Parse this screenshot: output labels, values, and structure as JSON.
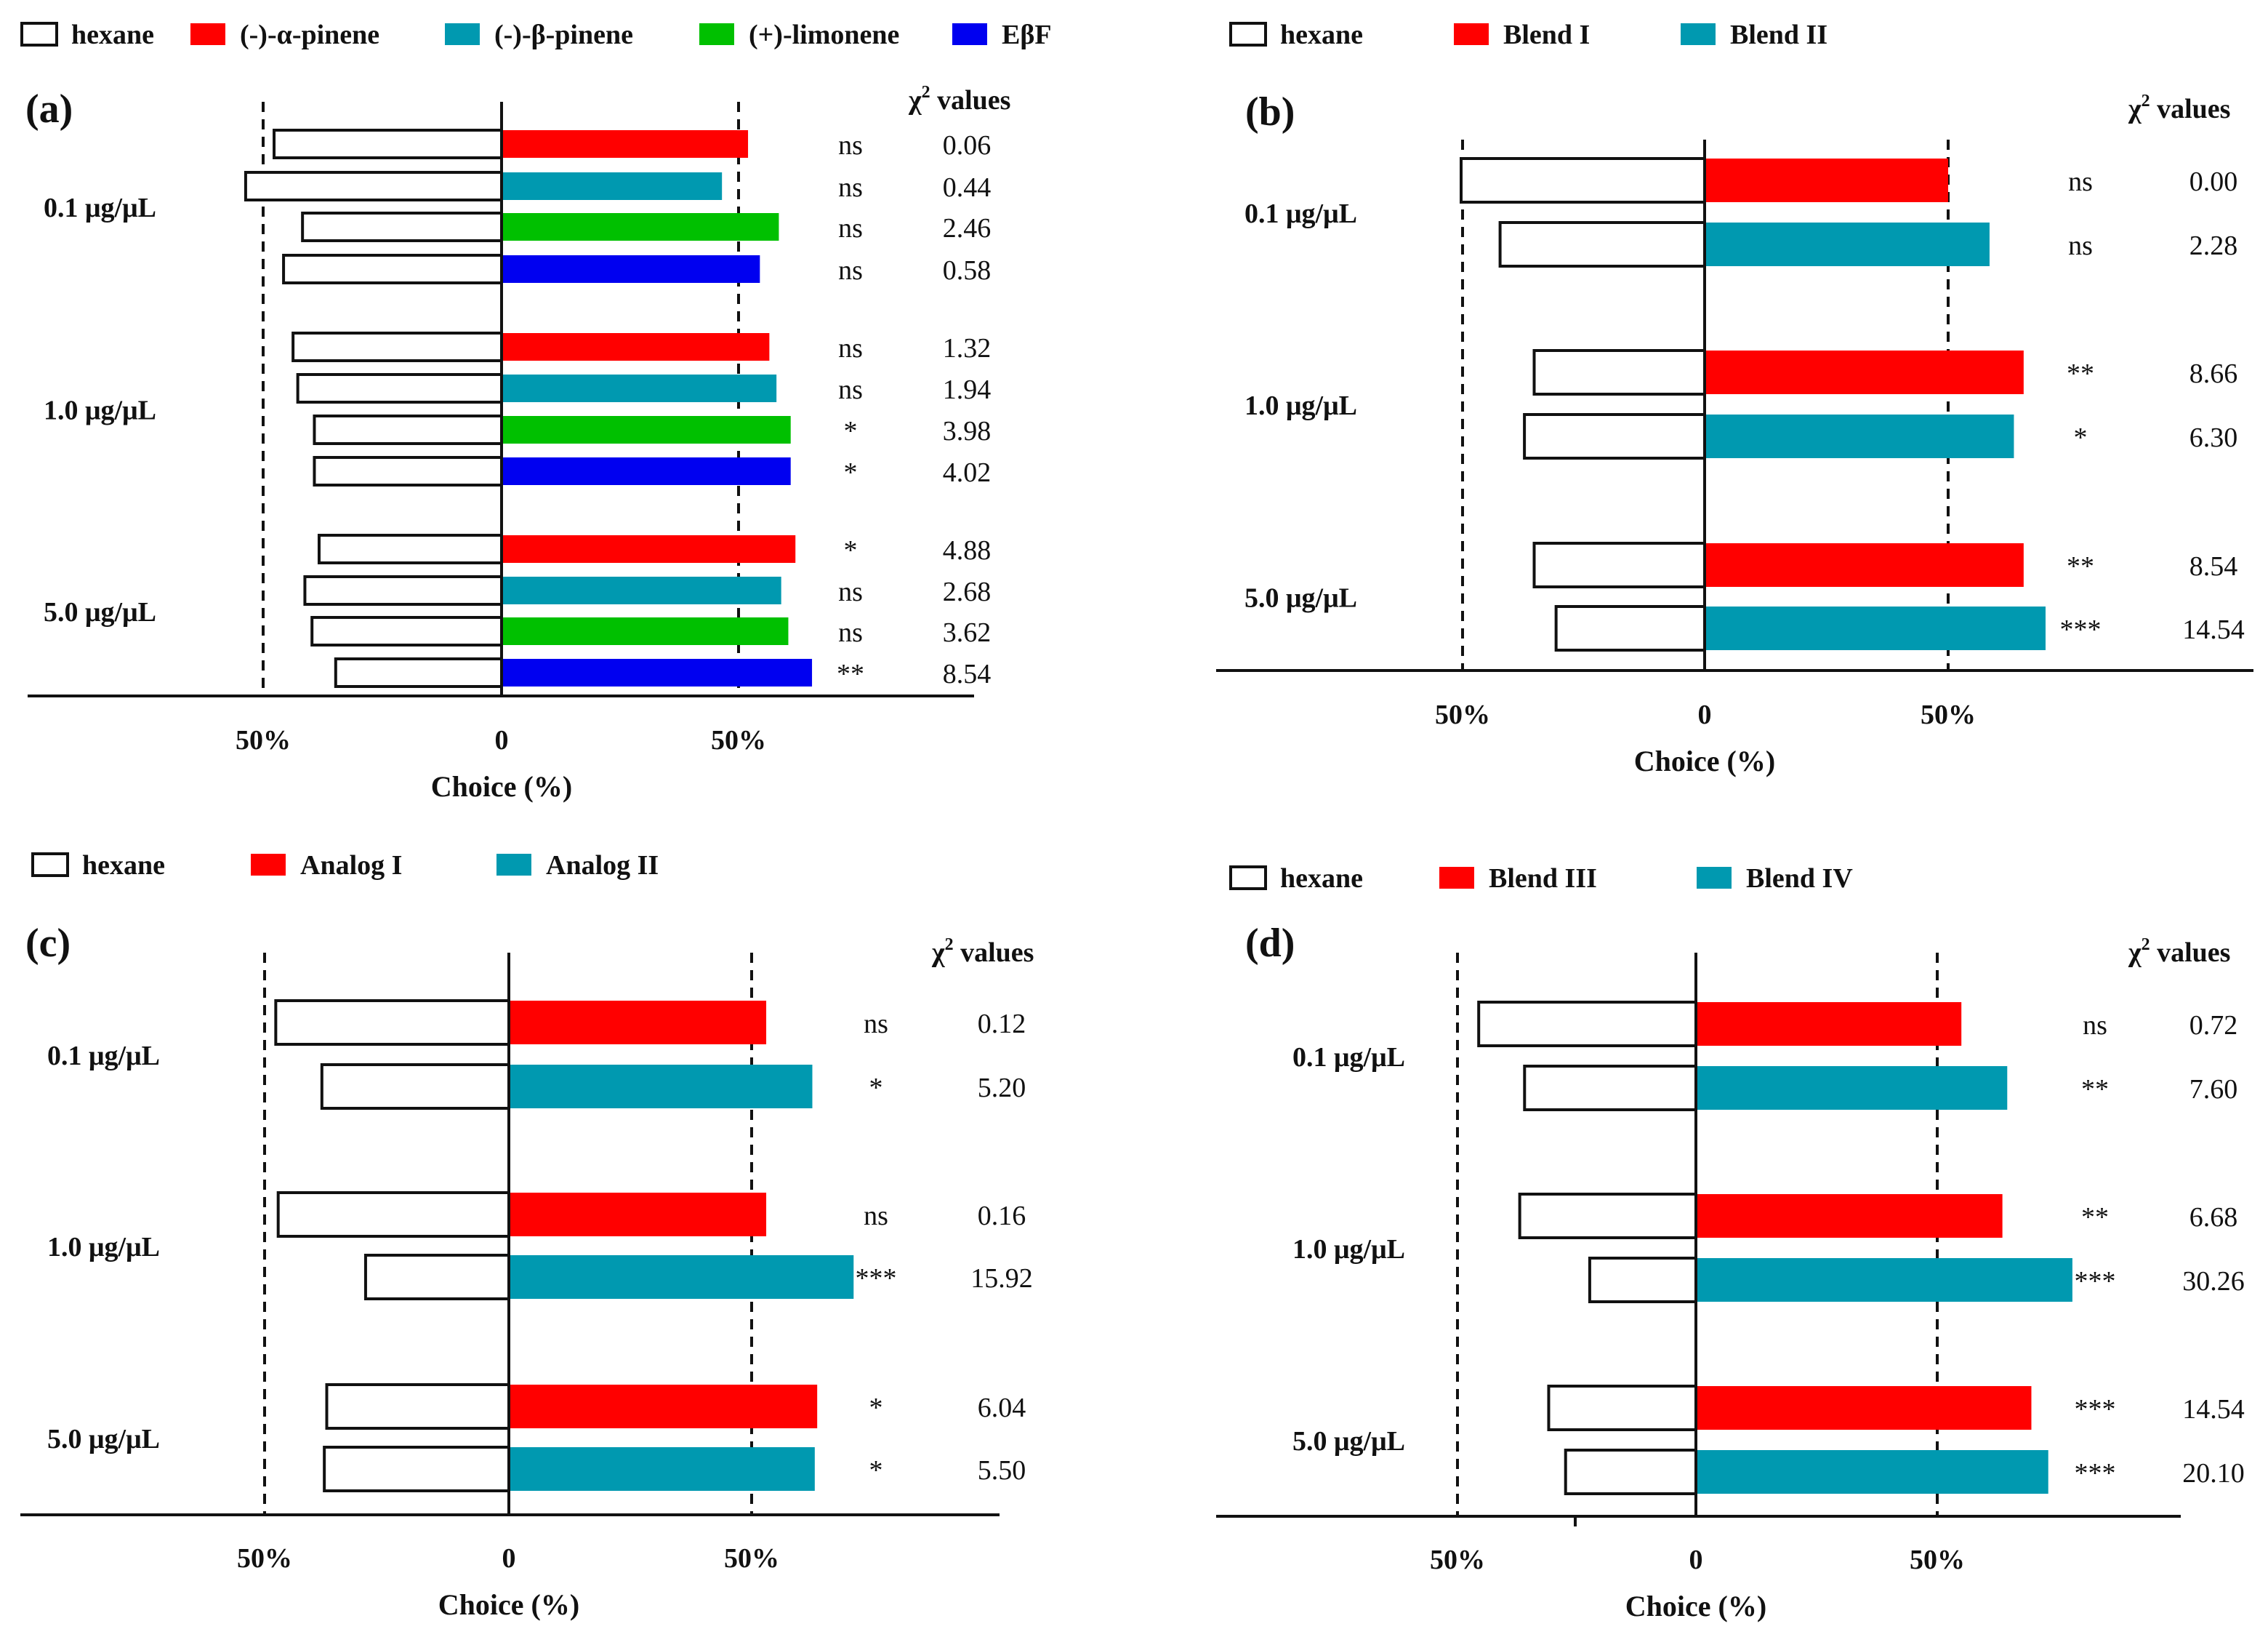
{
  "colors": {
    "hexane_fill": "#ffffff",
    "outline": "#111111",
    "red": "#ff0000",
    "teal": "#0099b0",
    "green": "#00c000",
    "blue": "#0000f0"
  },
  "chart_data": [
    {
      "type": "bar",
      "panel_label": "(a)",
      "xlabel": "Choice (%)",
      "chi_header": "χ",
      "chi_header_sup": "2",
      "chi_header_rest": " values",
      "xlim": [
        -50,
        50
      ],
      "xtick_labels": [
        "50%",
        "0",
        "50%"
      ],
      "legend": [
        {
          "name": "hexane",
          "color": "#ffffff"
        },
        {
          "name": "(-)-α-pinene",
          "color": "#ff0000"
        },
        {
          "name": "(-)-β-pinene",
          "color": "#0099b0"
        },
        {
          "name": "(+)-limonene",
          "color": "#00c000"
        },
        {
          "name": "EβF",
          "color": "#0000f0"
        }
      ],
      "groups": [
        {
          "label": "0.1 μg/μL",
          "rows": [
            {
              "hexane": 48,
              "treatment": 52,
              "color": "#ff0000",
              "sig": "ns",
              "chi": "0.06"
            },
            {
              "hexane": 54,
              "treatment": 46.5,
              "color": "#0099b0",
              "sig": "ns",
              "chi": "0.44"
            },
            {
              "hexane": 42,
              "treatment": 58.5,
              "color": "#00c000",
              "sig": "ns",
              "chi": "2.46"
            },
            {
              "hexane": 46,
              "treatment": 54.5,
              "color": "#0000f0",
              "sig": "ns",
              "chi": "0.58"
            }
          ]
        },
        {
          "label": "1.0 μg/μL",
          "rows": [
            {
              "hexane": 44,
              "treatment": 56.5,
              "color": "#ff0000",
              "sig": "ns",
              "chi": "1.32"
            },
            {
              "hexane": 43,
              "treatment": 58,
              "color": "#0099b0",
              "sig": "ns",
              "chi": "1.94"
            },
            {
              "hexane": 39.5,
              "treatment": 61,
              "color": "#00c000",
              "sig": "*",
              "chi": "3.98"
            },
            {
              "hexane": 39.5,
              "treatment": 61,
              "color": "#0000f0",
              "sig": "*",
              "chi": "4.02"
            }
          ]
        },
        {
          "label": "5.0 μg/μL",
          "rows": [
            {
              "hexane": 38.5,
              "treatment": 62,
              "color": "#ff0000",
              "sig": "*",
              "chi": "4.88"
            },
            {
              "hexane": 41.5,
              "treatment": 59,
              "color": "#0099b0",
              "sig": "ns",
              "chi": "2.68"
            },
            {
              "hexane": 40,
              "treatment": 60.5,
              "color": "#00c000",
              "sig": "ns",
              "chi": "3.62"
            },
            {
              "hexane": 35,
              "treatment": 65.5,
              "color": "#0000f0",
              "sig": "**",
              "chi": "8.54"
            }
          ]
        }
      ]
    },
    {
      "type": "bar",
      "panel_label": "(b)",
      "xlabel": "Choice (%)",
      "chi_header": "χ",
      "chi_header_sup": "2",
      "chi_header_rest": " values",
      "xlim": [
        -50,
        50
      ],
      "xtick_labels": [
        "50%",
        "0",
        "50%"
      ],
      "legend": [
        {
          "name": "hexane",
          "color": "#ffffff"
        },
        {
          "name": "Blend I",
          "color": "#ff0000"
        },
        {
          "name": "Blend II",
          "color": "#0099b0"
        }
      ],
      "groups": [
        {
          "label": "0.1 μg/μL",
          "rows": [
            {
              "hexane": 50,
              "treatment": 50,
              "color": "#ff0000",
              "sig": "ns",
              "chi": "0.00"
            },
            {
              "hexane": 42,
              "treatment": 58.5,
              "color": "#0099b0",
              "sig": "ns",
              "chi": "2.28"
            }
          ]
        },
        {
          "label": "1.0 μg/μL",
          "rows": [
            {
              "hexane": 35,
              "treatment": 65.5,
              "color": "#ff0000",
              "sig": "**",
              "chi": "8.66"
            },
            {
              "hexane": 37,
              "treatment": 63.5,
              "color": "#0099b0",
              "sig": "*",
              "chi": "6.30"
            }
          ]
        },
        {
          "label": "5.0 μg/μL",
          "rows": [
            {
              "hexane": 35,
              "treatment": 65.5,
              "color": "#ff0000",
              "sig": "**",
              "chi": "8.54"
            },
            {
              "hexane": 30.5,
              "treatment": 70,
              "color": "#0099b0",
              "sig": "***",
              "chi": "14.54"
            }
          ]
        }
      ]
    },
    {
      "type": "bar",
      "panel_label": "(c)",
      "xlabel": "Choice (%)",
      "chi_header": "χ",
      "chi_header_sup": "2",
      "chi_header_rest": " values",
      "xlim": [
        -50,
        50
      ],
      "xtick_labels": [
        "50%",
        "0",
        "50%"
      ],
      "legend": [
        {
          "name": "hexane",
          "color": "#ffffff"
        },
        {
          "name": "Analog I",
          "color": "#ff0000"
        },
        {
          "name": "Analog II",
          "color": "#0099b0"
        }
      ],
      "groups": [
        {
          "label": "0.1 μg/μL",
          "rows": [
            {
              "hexane": 48,
              "treatment": 53,
              "color": "#ff0000",
              "sig": "ns",
              "chi": "0.12"
            },
            {
              "hexane": 38.5,
              "treatment": 62.5,
              "color": "#0099b0",
              "sig": "*",
              "chi": "5.20"
            }
          ]
        },
        {
          "label": "1.0 μg/μL",
          "rows": [
            {
              "hexane": 47.5,
              "treatment": 53,
              "color": "#ff0000",
              "sig": "ns",
              "chi": "0.16"
            },
            {
              "hexane": 29.5,
              "treatment": 71,
              "color": "#0099b0",
              "sig": "***",
              "chi": "15.92"
            }
          ]
        },
        {
          "label": "5.0 μg/μL",
          "rows": [
            {
              "hexane": 37.5,
              "treatment": 63.5,
              "color": "#ff0000",
              "sig": "*",
              "chi": "6.04"
            },
            {
              "hexane": 38,
              "treatment": 63,
              "color": "#0099b0",
              "sig": "*",
              "chi": "5.50"
            }
          ]
        }
      ]
    },
    {
      "type": "bar",
      "panel_label": "(d)",
      "xlabel": "Choice (%)",
      "chi_header": "χ",
      "chi_header_sup": "2",
      "chi_header_rest": " values",
      "xlim": [
        -50,
        50
      ],
      "xtick_labels": [
        "50%",
        "0",
        "50%"
      ],
      "legend": [
        {
          "name": "hexane",
          "color": "#ffffff"
        },
        {
          "name": "Blend III",
          "color": "#ff0000"
        },
        {
          "name": "Blend IV",
          "color": "#0099b0"
        }
      ],
      "groups": [
        {
          "label": "0.1 μg/μL",
          "rows": [
            {
              "hexane": 45,
              "treatment": 55,
              "color": "#ff0000",
              "sig": "ns",
              "chi": "0.72"
            },
            {
              "hexane": 35.5,
              "treatment": 64.5,
              "color": "#0099b0",
              "sig": "**",
              "chi": "7.60"
            }
          ]
        },
        {
          "label": "1.0 μg/μL",
          "rows": [
            {
              "hexane": 36.5,
              "treatment": 63.5,
              "color": "#ff0000",
              "sig": "**",
              "chi": "6.68"
            },
            {
              "hexane": 22,
              "treatment": 78,
              "color": "#0099b0",
              "sig": "***",
              "chi": "30.26"
            }
          ]
        },
        {
          "label": "5.0 μg/μL",
          "rows": [
            {
              "hexane": 30.5,
              "treatment": 69.5,
              "color": "#ff0000",
              "sig": "***",
              "chi": "14.54"
            },
            {
              "hexane": 27,
              "treatment": 73,
              "color": "#0099b0",
              "sig": "***",
              "chi": "20.10"
            }
          ]
        }
      ]
    }
  ]
}
